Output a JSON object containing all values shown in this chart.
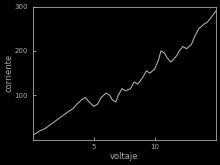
{
  "title": "",
  "xlabel": "voltaje",
  "ylabel": "corriente",
  "xlim": [
    0,
    15
  ],
  "ylim": [
    0,
    300
  ],
  "xticks": [
    5,
    10
  ],
  "yticks": [
    100,
    200,
    300
  ],
  "xlabel_fontsize": 6,
  "ylabel_fontsize": 6,
  "tick_fontsize": 5,
  "line_color": "#aaaaaa",
  "background_color": "#000000",
  "axes_facecolor": "#000000",
  "figure_facecolor": "#000000",
  "tick_color": "#aaaaaa",
  "spine_color": "#aaaaaa",
  "x_data": [
    0.0,
    0.3,
    0.6,
    1.0,
    1.5,
    2.0,
    2.5,
    3.0,
    3.3,
    3.6,
    4.0,
    4.3,
    4.6,
    5.0,
    5.3,
    5.6,
    6.0,
    6.3,
    6.5,
    6.8,
    7.0,
    7.3,
    7.6,
    8.0,
    8.3,
    8.6,
    9.0,
    9.3,
    9.6,
    10.0,
    10.3,
    10.5,
    10.8,
    11.0,
    11.3,
    11.5,
    11.8,
    12.0,
    12.3,
    12.6,
    13.0,
    13.3,
    13.6,
    14.0,
    14.3,
    14.6,
    15.0
  ],
  "y_data": [
    10,
    15,
    20,
    25,
    35,
    45,
    55,
    65,
    70,
    80,
    90,
    95,
    85,
    75,
    80,
    95,
    105,
    100,
    90,
    85,
    100,
    115,
    110,
    115,
    130,
    125,
    140,
    155,
    150,
    160,
    180,
    200,
    195,
    185,
    175,
    180,
    190,
    200,
    210,
    205,
    215,
    235,
    250,
    260,
    265,
    275,
    290
  ]
}
